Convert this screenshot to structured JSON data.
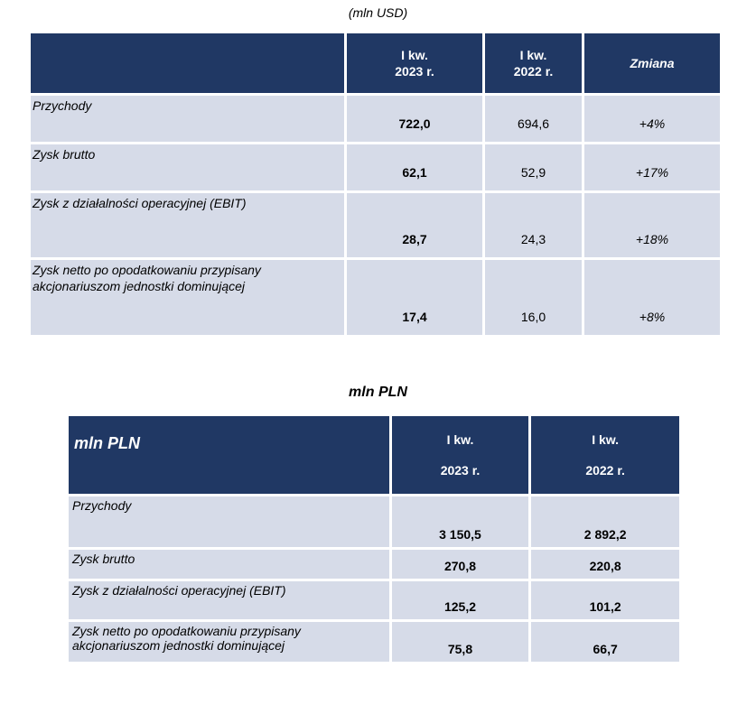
{
  "usd_table": {
    "caption": "(mln USD)",
    "header": {
      "col1_line1": "I kw.",
      "col1_line2": "2023 r.",
      "col2_line1": "I kw.",
      "col2_line2": "2022 r.",
      "change": "Zmiana"
    },
    "rows": [
      {
        "label": "Przychody",
        "q1_2023": "722,0",
        "q1_2022": "694,6",
        "change": "+4%"
      },
      {
        "label": "Zysk brutto",
        "q1_2023": "62,1",
        "q1_2022": "52,9",
        "change": "+17%"
      },
      {
        "label": "Zysk z działalności operacyjnej (EBIT)",
        "q1_2023": "28,7",
        "q1_2022": "24,3",
        "change": "+18%"
      },
      {
        "label_line1": "Zysk netto po opodatkowaniu przypisany",
        "label_line2": "akcjonariuszom jednostki dominującej",
        "q1_2023": "17,4",
        "q1_2022": "16,0",
        "change": "+8%"
      }
    ]
  },
  "pln_table": {
    "caption": "mln PLN",
    "header": {
      "title": "mln PLN",
      "col1_line1": "I kw.",
      "col1_line2": "2023 r.",
      "col2_line1": "I kw.",
      "col2_line2": "2022 r."
    },
    "rows": [
      {
        "label": "Przychody",
        "q1_2023": "3 150,5",
        "q1_2022": "2 892,2"
      },
      {
        "label": "Zysk brutto",
        "q1_2023": "270,8",
        "q1_2022": "220,8"
      },
      {
        "label": "Zysk z działalności operacyjnej (EBIT)",
        "q1_2023": "125,2",
        "q1_2022": "101,2"
      },
      {
        "label_line1": "Zysk netto po opodatkowaniu przypisany",
        "label_line2": "akcjonariuszom jednostki dominującej",
        "q1_2023": "75,8",
        "q1_2022": "66,7"
      }
    ]
  },
  "colors": {
    "header_bg": "#203864",
    "row_bg": "#d6dbe8"
  }
}
